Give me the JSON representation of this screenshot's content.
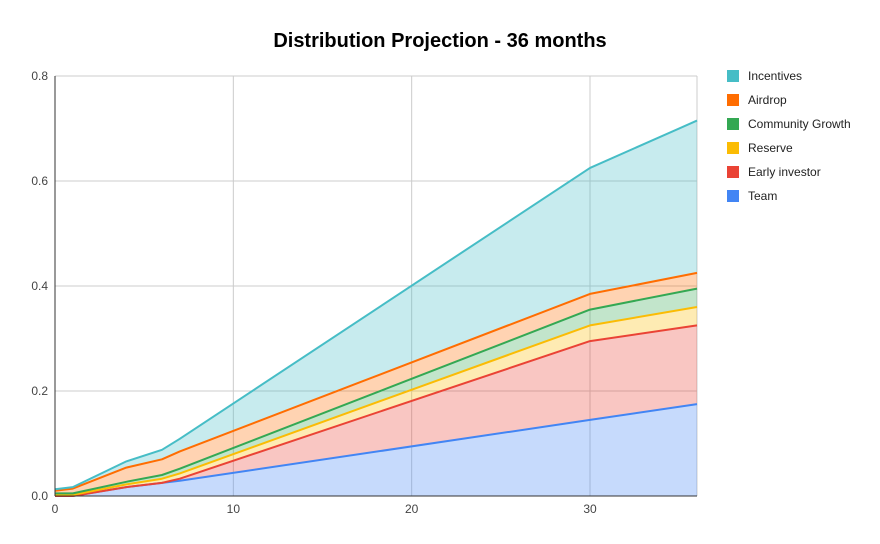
{
  "chart_data": {
    "type": "area",
    "stacked": true,
    "title": "Distribution Projection - 36 months",
    "xlabel": "",
    "ylabel": "",
    "xlim": [
      0,
      36
    ],
    "ylim": [
      0,
      0.8
    ],
    "x_ticks": [
      "0",
      "10",
      "20",
      "30"
    ],
    "y_ticks": [
      "0.0",
      "0.2",
      "0.4",
      "0.6",
      "0.8"
    ],
    "grid": true,
    "legend_position": "right",
    "x": [
      0,
      1,
      4,
      6,
      7,
      30,
      36
    ],
    "series": [
      {
        "name": "Team",
        "color": "#4285f4",
        "values": [
          0,
          0,
          0.017,
          0.025,
          0.029,
          0.145,
          0.175
        ]
      },
      {
        "name": "Early investor",
        "color": "#ea4335",
        "values": [
          0,
          0,
          0,
          0,
          0.004,
          0.15,
          0.15
        ]
      },
      {
        "name": "Reserve",
        "color": "#fbbc04",
        "values": [
          0.002,
          0.002,
          0.005,
          0.008,
          0.01,
          0.03,
          0.035
        ]
      },
      {
        "name": "Community Growth",
        "color": "#34a853",
        "values": [
          0.003,
          0.003,
          0.005,
          0.007,
          0.009,
          0.03,
          0.035
        ]
      },
      {
        "name": "Airdrop",
        "color": "#ff6d01",
        "values": [
          0.005,
          0.009,
          0.027,
          0.03,
          0.033,
          0.03,
          0.03
        ]
      },
      {
        "name": "Incentives",
        "color": "#46bdc6",
        "values": [
          0.003,
          0.003,
          0.012,
          0.018,
          0.024,
          0.24,
          0.29
        ]
      }
    ],
    "legend_order": [
      "Incentives",
      "Airdrop",
      "Community Growth",
      "Reserve",
      "Early investor",
      "Team"
    ]
  }
}
